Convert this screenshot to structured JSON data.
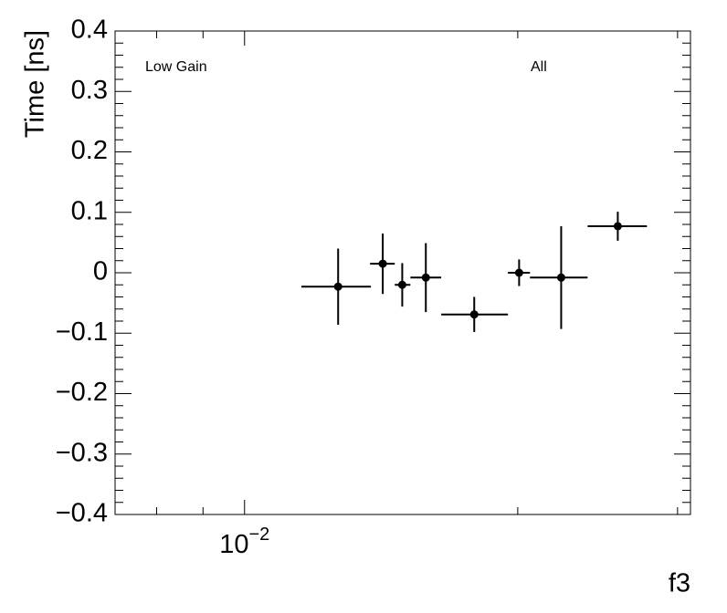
{
  "chart_data": {
    "type": "errorbar",
    "ylabel": "Time [ns]",
    "xlabel": "f3",
    "annotations": [
      "Low Gain",
      "All"
    ],
    "xlog": true,
    "xlim": [
      0.0072,
      0.031
    ],
    "ylim": [
      -0.4,
      0.4
    ],
    "xticks": [
      {
        "value": 0.01,
        "label": "10",
        "exponent": "−2"
      }
    ],
    "xminorticks": [
      0.008,
      0.009,
      0.02,
      0.03
    ],
    "yticks": [
      {
        "value": -0.4,
        "label": "−0.4"
      },
      {
        "value": -0.3,
        "label": "−0.3"
      },
      {
        "value": -0.2,
        "label": "−0.2"
      },
      {
        "value": -0.1,
        "label": "−0.1"
      },
      0,
      0.1,
      0.2,
      0.3,
      0.4
    ],
    "yminorticks": [
      -0.38,
      -0.36,
      -0.34,
      -0.32,
      -0.28,
      -0.26,
      -0.24,
      -0.22,
      -0.18,
      -0.16,
      -0.14,
      -0.12,
      -0.08,
      -0.06,
      -0.04,
      -0.02,
      0.02,
      0.04,
      0.06,
      0.08,
      0.12,
      0.14,
      0.16,
      0.18,
      0.22,
      0.24,
      0.26,
      0.28,
      0.32,
      0.34,
      0.36,
      0.38
    ],
    "color": "#000000",
    "x": [
      0.01268,
      0.0142,
      0.01492,
      0.01584,
      0.01791,
      0.02007,
      0.02233,
      0.02578
    ],
    "x_lo": [
      0.01155,
      0.01375,
      0.01464,
      0.01523,
      0.01647,
      0.01951,
      0.02063,
      0.02388
    ],
    "x_hi": [
      0.01378,
      0.01464,
      0.01523,
      0.01647,
      0.01951,
      0.02063,
      0.02388,
      0.02776
    ],
    "values": [
      -0.023,
      0.015,
      -0.02,
      -0.008,
      -0.069,
      0.0,
      -0.008,
      0.077
    ],
    "yerr": [
      0.063,
      0.05,
      0.036,
      0.057,
      0.029,
      0.022,
      0.085,
      0.024
    ]
  }
}
